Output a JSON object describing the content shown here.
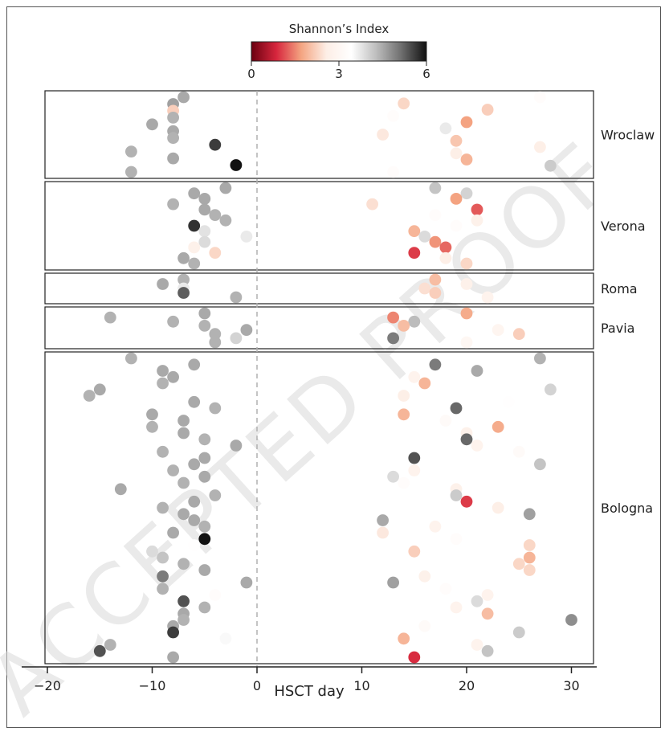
{
  "chart_data": {
    "type": "scatter",
    "title": "",
    "xlabel": "HSCT day",
    "ylabel": "",
    "xlim": [
      -20,
      32
    ],
    "xticks": [
      -20,
      -10,
      0,
      10,
      20,
      30
    ],
    "reference_line_x": 0,
    "colorbar": {
      "title": "Shannon’s Index",
      "min": 0,
      "max": 6,
      "ticks": [
        "0",
        "3",
        "6"
      ],
      "colors": [
        "#6b0010",
        "#d7263d",
        "#f4a582",
        "#fdeee6",
        "#ffffff",
        "#bdbdbd",
        "#6e6e6e",
        "#111111"
      ]
    },
    "watermark": "ACCEPTED PROOF",
    "panels": [
      {
        "site": "Wroclaw",
        "points": [
          {
            "x": -7,
            "shannon": 4.5
          },
          {
            "x": -8,
            "shannon": 4.6
          },
          {
            "x": -8,
            "shannon": 2.2
          },
          {
            "x": -8,
            "shannon": 4.4
          },
          {
            "x": -10,
            "shannon": 4.5
          },
          {
            "x": -8,
            "shannon": 4.5
          },
          {
            "x": -8,
            "shannon": 4.4
          },
          {
            "x": -4,
            "shannon": 5.6
          },
          {
            "x": -12,
            "shannon": 4.4
          },
          {
            "x": -8,
            "shannon": 4.5
          },
          {
            "x": -2,
            "shannon": 6.0
          },
          {
            "x": -12,
            "shannon": 4.4
          },
          {
            "x": 27,
            "shannon": 3.3
          },
          {
            "x": 14,
            "shannon": 2.3
          },
          {
            "x": 22,
            "shannon": 2.2
          },
          {
            "x": 13,
            "shannon": 3.3
          },
          {
            "x": 20,
            "shannon": 1.7
          },
          {
            "x": 18,
            "shannon": 3.7
          },
          {
            "x": 12,
            "shannon": 2.5
          },
          {
            "x": 19,
            "shannon": 2.1
          },
          {
            "x": 27,
            "shannon": 2.6
          },
          {
            "x": 19,
            "shannon": 2.6
          },
          {
            "x": 20,
            "shannon": 1.9
          },
          {
            "x": 28,
            "shannon": 4.1
          },
          {
            "x": 13,
            "shannon": 3.3
          }
        ]
      },
      {
        "site": "Verona",
        "points": [
          {
            "x": -3,
            "shannon": 4.5
          },
          {
            "x": -6,
            "shannon": 4.5
          },
          {
            "x": -5,
            "shannon": 4.5
          },
          {
            "x": -8,
            "shannon": 4.4
          },
          {
            "x": -5,
            "shannon": 4.5
          },
          {
            "x": -4,
            "shannon": 4.4
          },
          {
            "x": -3,
            "shannon": 4.4
          },
          {
            "x": -6,
            "shannon": 5.7
          },
          {
            "x": -5,
            "shannon": 3.8
          },
          {
            "x": -1,
            "shannon": 3.7
          },
          {
            "x": -5,
            "shannon": 3.9
          },
          {
            "x": -6,
            "shannon": 2.7
          },
          {
            "x": -4,
            "shannon": 2.3
          },
          {
            "x": -7,
            "shannon": 4.5
          },
          {
            "x": -6,
            "shannon": 4.4
          },
          {
            "x": 17,
            "shannon": 4.2
          },
          {
            "x": 20,
            "shannon": 4.0
          },
          {
            "x": 19,
            "shannon": 1.7
          },
          {
            "x": 11,
            "shannon": 2.4
          },
          {
            "x": 21,
            "shannon": 1.2
          },
          {
            "x": 17,
            "shannon": 3.3
          },
          {
            "x": 21,
            "shannon": 2.7
          },
          {
            "x": 19,
            "shannon": 3.3
          },
          {
            "x": 15,
            "shannon": 1.9
          },
          {
            "x": 16,
            "shannon": 3.9
          },
          {
            "x": 17,
            "shannon": 1.6
          },
          {
            "x": 18,
            "shannon": 1.3
          },
          {
            "x": 15,
            "shannon": 1.0
          },
          {
            "x": 18,
            "shannon": 2.6
          },
          {
            "x": 20,
            "shannon": 2.3
          }
        ]
      },
      {
        "site": "Roma",
        "points": [
          {
            "x": -7,
            "shannon": 4.4
          },
          {
            "x": -9,
            "shannon": 4.5
          },
          {
            "x": -7,
            "shannon": 3.7
          },
          {
            "x": -7,
            "shannon": 5.3
          },
          {
            "x": -2,
            "shannon": 4.4
          },
          {
            "x": 17,
            "shannon": 2.0
          },
          {
            "x": 20,
            "shannon": 2.7
          },
          {
            "x": 16,
            "shannon": 2.4
          },
          {
            "x": 17,
            "shannon": 2.2
          },
          {
            "x": 22,
            "shannon": 2.8
          }
        ]
      },
      {
        "site": "Pavia",
        "points": [
          {
            "x": -5,
            "shannon": 4.5
          },
          {
            "x": -14,
            "shannon": 4.4
          },
          {
            "x": -8,
            "shannon": 4.4
          },
          {
            "x": -5,
            "shannon": 4.4
          },
          {
            "x": -1,
            "shannon": 4.5
          },
          {
            "x": -4,
            "shannon": 4.4
          },
          {
            "x": -2,
            "shannon": 4.0
          },
          {
            "x": -4,
            "shannon": 4.4
          },
          {
            "x": 20,
            "shannon": 1.8
          },
          {
            "x": 13,
            "shannon": 1.5
          },
          {
            "x": 15,
            "shannon": 4.3
          },
          {
            "x": 14,
            "shannon": 2.0
          },
          {
            "x": 23,
            "shannon": 2.9
          },
          {
            "x": 25,
            "shannon": 2.2
          },
          {
            "x": 13,
            "shannon": 5.0
          },
          {
            "x": 20,
            "shannon": 3.0
          }
        ]
      },
      {
        "site": "Bologna",
        "points": [
          {
            "x": -12,
            "shannon": 4.4
          },
          {
            "x": -6,
            "shannon": 4.5
          },
          {
            "x": -9,
            "shannon": 4.5
          },
          {
            "x": -8,
            "shannon": 4.5
          },
          {
            "x": -9,
            "shannon": 4.4
          },
          {
            "x": -15,
            "shannon": 4.5
          },
          {
            "x": -16,
            "shannon": 4.4
          },
          {
            "x": -6,
            "shannon": 4.5
          },
          {
            "x": -4,
            "shannon": 4.4
          },
          {
            "x": -10,
            "shannon": 4.5
          },
          {
            "x": -7,
            "shannon": 4.5
          },
          {
            "x": -10,
            "shannon": 4.4
          },
          {
            "x": -7,
            "shannon": 4.5
          },
          {
            "x": -5,
            "shannon": 4.4
          },
          {
            "x": -2,
            "shannon": 4.5
          },
          {
            "x": -9,
            "shannon": 4.4
          },
          {
            "x": -5,
            "shannon": 4.5
          },
          {
            "x": -6,
            "shannon": 4.5
          },
          {
            "x": -8,
            "shannon": 4.4
          },
          {
            "x": -5,
            "shannon": 4.5
          },
          {
            "x": -7,
            "shannon": 4.4
          },
          {
            "x": -13,
            "shannon": 4.5
          },
          {
            "x": -4,
            "shannon": 4.4
          },
          {
            "x": -6,
            "shannon": 4.5
          },
          {
            "x": -9,
            "shannon": 4.4
          },
          {
            "x": -7,
            "shannon": 4.5
          },
          {
            "x": -6,
            "shannon": 4.5
          },
          {
            "x": -5,
            "shannon": 4.4
          },
          {
            "x": -8,
            "shannon": 4.5
          },
          {
            "x": -5,
            "shannon": 6.0
          },
          {
            "x": -6,
            "shannon": 3.4
          },
          {
            "x": -10,
            "shannon": 3.9
          },
          {
            "x": -9,
            "shannon": 4.2
          },
          {
            "x": -7,
            "shannon": 4.4
          },
          {
            "x": -5,
            "shannon": 4.5
          },
          {
            "x": -9,
            "shannon": 5.0
          },
          {
            "x": -1,
            "shannon": 4.5
          },
          {
            "x": -9,
            "shannon": 4.4
          },
          {
            "x": -4,
            "shannon": 3.3
          },
          {
            "x": -7,
            "shannon": 5.4
          },
          {
            "x": -5,
            "shannon": 4.4
          },
          {
            "x": -7,
            "shannon": 4.5
          },
          {
            "x": -7,
            "shannon": 4.4
          },
          {
            "x": -8,
            "shannon": 4.5
          },
          {
            "x": -8,
            "shannon": 5.6
          },
          {
            "x": -3,
            "shannon": 3.5
          },
          {
            "x": -14,
            "shannon": 4.4
          },
          {
            "x": -15,
            "shannon": 5.4
          },
          {
            "x": -8,
            "shannon": 4.5
          },
          {
            "x": 27,
            "shannon": 4.4
          },
          {
            "x": 17,
            "shannon": 5.0
          },
          {
            "x": 21,
            "shannon": 4.5
          },
          {
            "x": 15,
            "shannon": 2.8
          },
          {
            "x": 16,
            "shannon": 1.9
          },
          {
            "x": 28,
            "shannon": 4.0
          },
          {
            "x": 14,
            "shannon": 2.6
          },
          {
            "x": 24,
            "shannon": 3.4
          },
          {
            "x": 19,
            "shannon": 5.2
          },
          {
            "x": 14,
            "shannon": 1.9
          },
          {
            "x": 18,
            "shannon": 3.2
          },
          {
            "x": 23,
            "shannon": 1.8
          },
          {
            "x": 20,
            "shannon": 2.7
          },
          {
            "x": 20,
            "shannon": 5.2
          },
          {
            "x": 21,
            "shannon": 2.8
          },
          {
            "x": 25,
            "shannon": 3.2
          },
          {
            "x": 15,
            "shannon": 5.4
          },
          {
            "x": 27,
            "shannon": 4.2
          },
          {
            "x": 15,
            "shannon": 2.8
          },
          {
            "x": 13,
            "shannon": 3.9
          },
          {
            "x": 14,
            "shannon": 3.3
          },
          {
            "x": 19,
            "shannon": 2.7
          },
          {
            "x": 19,
            "shannon": 4.1
          },
          {
            "x": 20,
            "shannon": 1.0
          },
          {
            "x": 23,
            "shannon": 2.6
          },
          {
            "x": 26,
            "shannon": 4.6
          },
          {
            "x": 12,
            "shannon": 4.5
          },
          {
            "x": 17,
            "shannon": 2.8
          },
          {
            "x": 12,
            "shannon": 2.5
          },
          {
            "x": 19,
            "shannon": 3.3
          },
          {
            "x": 26,
            "shannon": 2.3
          },
          {
            "x": 15,
            "shannon": 2.2
          },
          {
            "x": 26,
            "shannon": 1.9
          },
          {
            "x": 25,
            "shannon": 2.3
          },
          {
            "x": 26,
            "shannon": 2.3
          },
          {
            "x": 16,
            "shannon": 2.7
          },
          {
            "x": 13,
            "shannon": 4.6
          },
          {
            "x": 18,
            "shannon": 3.3
          },
          {
            "x": 22,
            "shannon": 2.8
          },
          {
            "x": 21,
            "shannon": 3.9
          },
          {
            "x": 19,
            "shannon": 2.8
          },
          {
            "x": 22,
            "shannon": 2.0
          },
          {
            "x": 30,
            "shannon": 4.8
          },
          {
            "x": 16,
            "shannon": 3.2
          },
          {
            "x": 25,
            "shannon": 4.1
          },
          {
            "x": 14,
            "shannon": 1.9
          },
          {
            "x": 21,
            "shannon": 2.8
          },
          {
            "x": 22,
            "shannon": 4.2
          },
          {
            "x": 15,
            "shannon": 0.9
          }
        ]
      }
    ]
  }
}
